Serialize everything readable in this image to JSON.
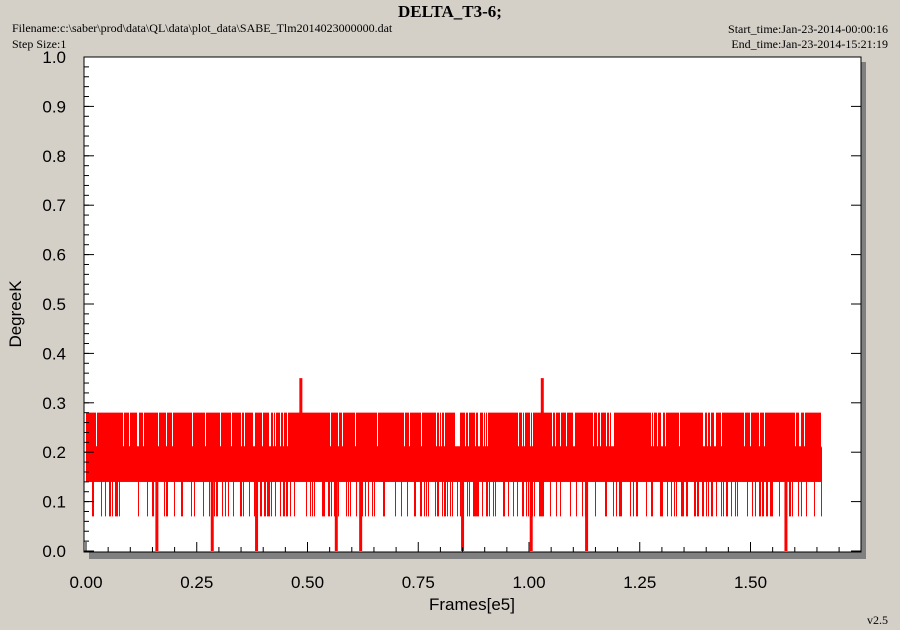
{
  "header": {
    "title": "DELTA_T3-6;",
    "filename": "Filename:c:\\saber\\prod\\data\\QL\\data\\plot_data\\SABE_Tlm2014023000000.dat",
    "step_size": "Step Size:1",
    "start_time": "Start_time:Jan-23-2014-00:00:16",
    "end_time": "End_time:Jan-23-2014-15:21:19"
  },
  "footer": {
    "version": "v2.5"
  },
  "colors": {
    "series": "#ff0000",
    "background": "#d4d0c8",
    "plot_area": "#ffffff"
  },
  "chart_data": {
    "type": "line",
    "xlabel": "Frames[e5]",
    "ylabel": "DegreeK",
    "xlim": [
      0,
      1.75
    ],
    "ylim": [
      0,
      1.0
    ],
    "x_ticks": [
      "0.00",
      "0.25",
      "0.50",
      "0.75",
      "1.00",
      "1.25",
      "1.50"
    ],
    "y_ticks": [
      "0.0",
      "0.1",
      "0.2",
      "0.3",
      "0.4",
      "0.5",
      "0.6",
      "0.7",
      "0.8",
      "0.9",
      "1.0"
    ],
    "grid": false,
    "series": [
      {
        "x_range": [
          0,
          1.66
        ],
        "levels": [
          0.07,
          0.14,
          0.21,
          0.28
        ],
        "baseline": 0.21,
        "spikes": [
          {
            "x": 0.485,
            "y": 0.35
          },
          {
            "x": 1.03,
            "y": 0.35
          }
        ],
        "dips": [
          {
            "x": 0.16,
            "y": 0.0
          },
          {
            "x": 0.285,
            "y": 0.0
          },
          {
            "x": 0.385,
            "y": 0.0
          },
          {
            "x": 0.565,
            "y": 0.0
          },
          {
            "x": 0.62,
            "y": 0.0
          },
          {
            "x": 0.85,
            "y": 0.0
          },
          {
            "x": 1.005,
            "y": 0.0
          },
          {
            "x": 1.13,
            "y": 0.0
          },
          {
            "x": 1.58,
            "y": 0.0
          }
        ]
      }
    ]
  }
}
